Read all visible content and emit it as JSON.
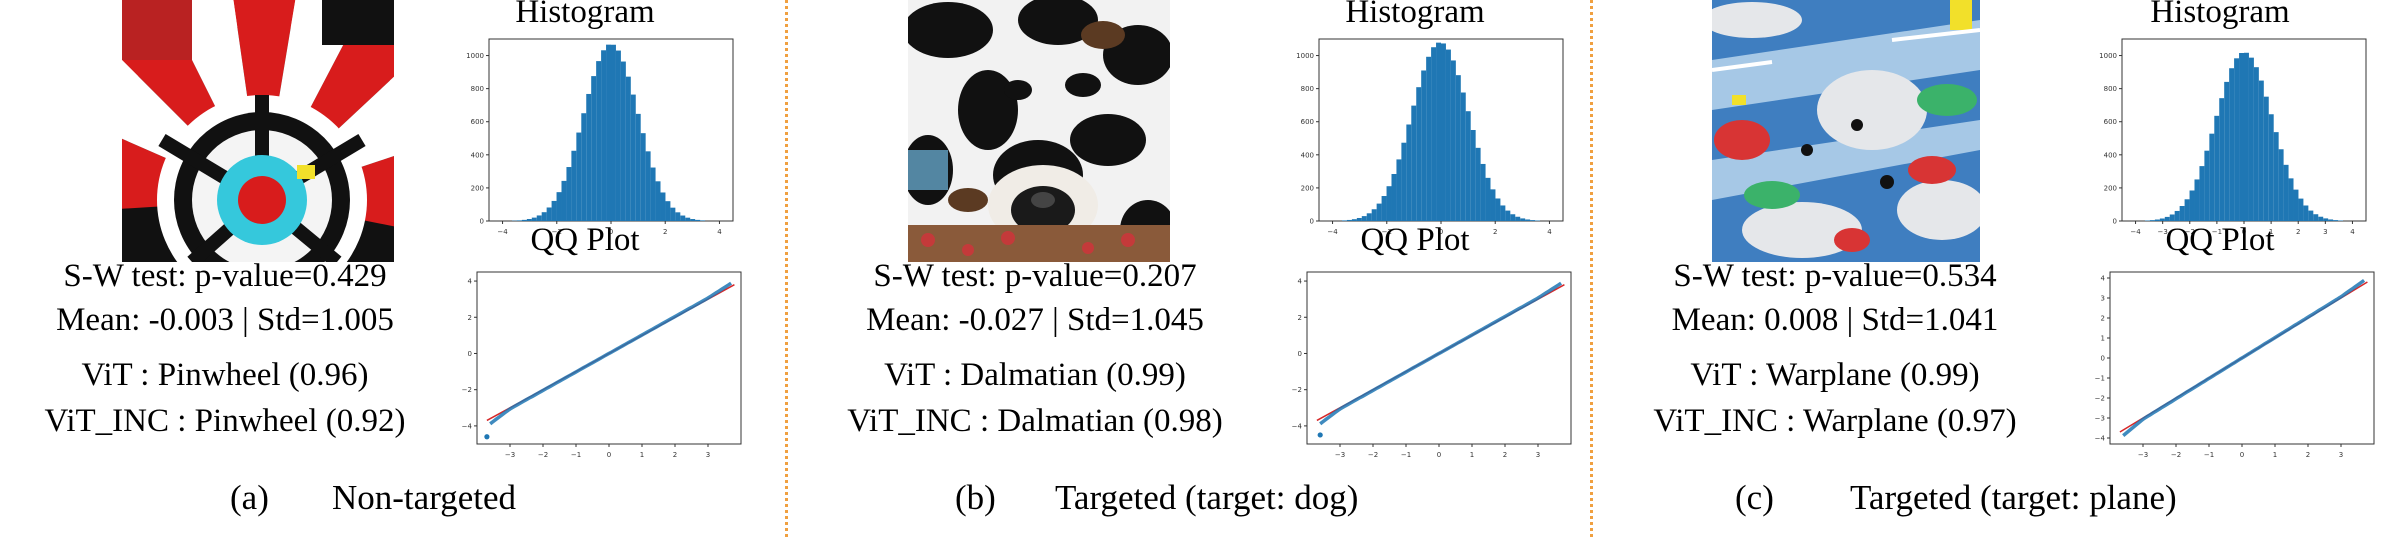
{
  "figure": {
    "panels": [
      {
        "id": "a",
        "histogram_title": "Histogram",
        "qq_title": "QQ Plot",
        "sw_test": "S-W test: p-value=0.429",
        "mean_std": "Mean: -0.003 | Std=1.005",
        "vit": "ViT : Pinwheel (0.96)",
        "vit_inc": "ViT_INC : Pinwheel (0.92)",
        "caption_label": "(a)",
        "caption_text": "Non-targeted",
        "image_subject": "pinwheel"
      },
      {
        "id": "b",
        "histogram_title": "Histogram",
        "qq_title": "QQ Plot",
        "sw_test": "S-W test: p-value=0.207",
        "mean_std": "Mean: -0.027 | Std=1.045",
        "vit": "ViT : Dalmatian (0.99)",
        "vit_inc": "ViT_INC : Dalmatian (0.98)",
        "caption_label": "(b)",
        "caption_text": "Targeted (target: dog)",
        "image_subject": "dalmatian"
      },
      {
        "id": "c",
        "histogram_title": "Histogram",
        "qq_title": "QQ Plot",
        "sw_test": "S-W test: p-value=0.534",
        "mean_std": "Mean: 0.008 | Std=1.041",
        "vit": "ViT : Warplane (0.99)",
        "vit_inc": "ViT_INC : Warplane (0.97)",
        "caption_label": "(c)",
        "caption_text": "Targeted (target: plane)",
        "image_subject": "warplane"
      }
    ]
  },
  "chart_data": [
    {
      "type": "bar",
      "title": "Histogram",
      "panel": "a",
      "x_ticks": [
        -4,
        -2,
        0,
        2,
        4
      ],
      "y_ticks": [
        0,
        200,
        400,
        600,
        800,
        1000
      ],
      "ylim": [
        0,
        1100
      ],
      "xlim": [
        -4.5,
        4.5
      ],
      "peak": 1070,
      "mean": -0.003,
      "std": 1.005
    },
    {
      "type": "scatter",
      "title": "QQ Plot",
      "panel": "a",
      "x_ticks": [
        -3,
        -2,
        -1,
        0,
        1,
        2,
        3
      ],
      "y_ticks": [
        -4,
        -2,
        0,
        2,
        4
      ],
      "xlim": [
        -4,
        4
      ],
      "ylim": [
        -5,
        4.5
      ],
      "outlier": [
        -3.7,
        -4.6
      ]
    },
    {
      "type": "bar",
      "title": "Histogram",
      "panel": "b",
      "x_ticks": [
        -4,
        -2,
        0,
        2,
        4
      ],
      "y_ticks": [
        0,
        200,
        400,
        600,
        800,
        1000
      ],
      "ylim": [
        0,
        1100
      ],
      "xlim": [
        -4.5,
        4.5
      ],
      "peak": 1080,
      "mean": -0.027,
      "std": 1.045
    },
    {
      "type": "scatter",
      "title": "QQ Plot",
      "panel": "b",
      "x_ticks": [
        -3,
        -2,
        -1,
        0,
        1,
        2,
        3
      ],
      "y_ticks": [
        -4,
        -2,
        0,
        2,
        4
      ],
      "xlim": [
        -4,
        4
      ],
      "ylim": [
        -5,
        4.5
      ],
      "outlier": [
        -3.6,
        -4.5
      ]
    },
    {
      "type": "bar",
      "title": "Histogram",
      "panel": "c",
      "x_ticks": [
        -4,
        -3,
        -2,
        -1,
        0,
        1,
        2,
        3,
        4
      ],
      "y_ticks": [
        0,
        200,
        400,
        600,
        800,
        1000
      ],
      "ylim": [
        0,
        1100
      ],
      "xlim": [
        -4.5,
        4.5
      ],
      "peak": 1020,
      "mean": 0.008,
      "std": 1.041
    },
    {
      "type": "scatter",
      "title": "QQ Plot",
      "panel": "c",
      "x_ticks": [
        -3,
        -2,
        -1,
        0,
        1,
        2,
        3
      ],
      "y_ticks": [
        -4,
        -3,
        -2,
        -1,
        0,
        1,
        2,
        3,
        4
      ],
      "xlim": [
        -4,
        4
      ],
      "ylim": [
        -4.3,
        4.3
      ],
      "outlier": null
    }
  ]
}
